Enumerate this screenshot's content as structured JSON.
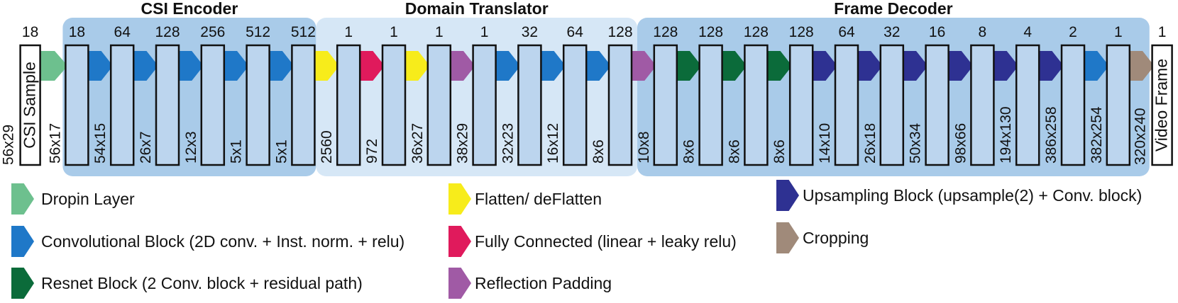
{
  "input": {
    "label": "CSI Sample",
    "channels": 18,
    "size": "56x29"
  },
  "sections": [
    {
      "title": "CSI Encoder",
      "blocks": [
        {
          "channels": 18,
          "size": "56x17",
          "arrow": "#6dc08e"
        },
        {
          "channels": 64,
          "size": "54x15",
          "arrow": "#1f78c8"
        },
        {
          "channels": 128,
          "size": "26x7",
          "arrow": "#1f78c8"
        },
        {
          "channels": 256,
          "size": "12x3",
          "arrow": "#1f78c8"
        },
        {
          "channels": 512,
          "size": "5x1",
          "arrow": "#1f78c8"
        },
        {
          "channels": 512,
          "size": "5x1",
          "arrow": "#1f78c8"
        }
      ]
    },
    {
      "title": "Domain Translator",
      "blocks": [
        {
          "channels": 1,
          "size": "2560",
          "arrow": "#f7ec1b"
        },
        {
          "channels": 1,
          "size": "972",
          "arrow": "#e01a5c"
        },
        {
          "channels": 1,
          "size": "36x27",
          "arrow": "#f7ec1b"
        },
        {
          "channels": 1,
          "size": "38x29",
          "arrow": "#a05aa5"
        },
        {
          "channels": 32,
          "size": "32x23",
          "arrow": "#1f78c8"
        },
        {
          "channels": 64,
          "size": "16x12",
          "arrow": "#1f78c8"
        },
        {
          "channels": 128,
          "size": "8x6",
          "arrow": "#1f78c8"
        }
      ]
    },
    {
      "title": "Frame Decoder",
      "blocks": [
        {
          "channels": 128,
          "size": "10x8",
          "arrow": "#a05aa5"
        },
        {
          "channels": 128,
          "size": "8x6",
          "arrow": "#0b6b3a"
        },
        {
          "channels": 128,
          "size": "8x6",
          "arrow": "#0b6b3a"
        },
        {
          "channels": 128,
          "size": "8x6",
          "arrow": "#0b6b3a"
        },
        {
          "channels": 64,
          "size": "14x10",
          "arrow": "#2e3192"
        },
        {
          "channels": 32,
          "size": "26x18",
          "arrow": "#2e3192"
        },
        {
          "channels": 16,
          "size": "50x34",
          "arrow": "#2e3192"
        },
        {
          "channels": 8,
          "size": "98x66",
          "arrow": "#2e3192"
        },
        {
          "channels": 4,
          "size": "194x130",
          "arrow": "#2e3192"
        },
        {
          "channels": 2,
          "size": "386x258",
          "arrow": "#2e3192"
        },
        {
          "channels": 1,
          "size": "382x254",
          "arrow": "#1f78c8"
        }
      ]
    }
  ],
  "output": {
    "label": "Video Frame",
    "channels": 1,
    "size": "320x240",
    "arrow": "#a08a7a"
  },
  "legend": {
    "items": [
      {
        "label": "Dropin Layer",
        "color": "#6dc08e"
      },
      {
        "label": "Convolutional Block (2D conv. + Inst. norm. + relu)",
        "color": "#1f78c8"
      },
      {
        "label": "Resnet Block (2 Conv. block + residual path)",
        "color": "#0b6b3a"
      },
      {
        "label": "Flatten/ deFlatten",
        "color": "#f7ec1b"
      },
      {
        "label": "Fully Connected (linear + leaky relu)",
        "color": "#e01a5c"
      },
      {
        "label": "Reflection Padding",
        "color": "#a05aa5"
      },
      {
        "label": "Upsampling Block (upsample(2) + Conv. block)",
        "color": "#2e3192"
      },
      {
        "label": "Cropping",
        "color": "#a08a7a"
      }
    ]
  }
}
